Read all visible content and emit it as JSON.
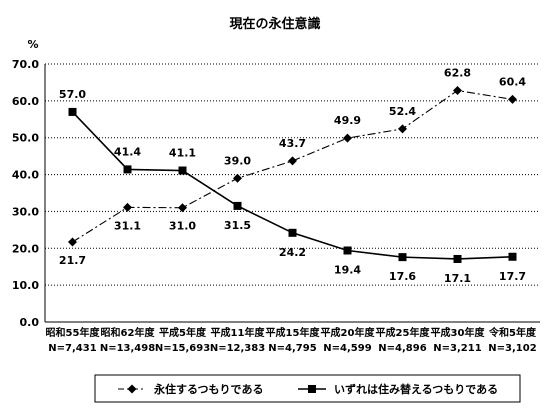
{
  "chart_data": {
    "type": "line",
    "title": "現在の永住意識",
    "ylabel": "%",
    "xlabel": "",
    "ylim": [
      0,
      70
    ],
    "y_ticks": [
      "0.0",
      "10.0",
      "20.0",
      "30.0",
      "40.0",
      "50.0",
      "60.0",
      "70.0"
    ],
    "grid": true,
    "legend_position": "bottom",
    "categories": [
      "昭和55年度",
      "昭和62年度",
      "平成5年度",
      "平成11年度",
      "平成15年度",
      "平成20年度",
      "平成25年度",
      "平成30年度",
      "令和5年度"
    ],
    "sample_sizes": [
      "N=7,431",
      "N=13,498",
      "N=15,693",
      "N=12,383",
      "N=4,795",
      "N=4,599",
      "N=4,896",
      "N=3,211",
      "N=3,102"
    ],
    "series": [
      {
        "name": "永住するつもりである",
        "values": [
          21.7,
          31.1,
          31.0,
          39.0,
          43.7,
          49.9,
          52.4,
          62.8,
          60.4
        ],
        "labels": [
          "21.7",
          "31.1",
          "31.0",
          "39.0",
          "43.7",
          "49.9",
          "52.4",
          "62.8",
          "60.4"
        ],
        "line_style": "dash-dot",
        "marker": "diamond",
        "color": "#000000"
      },
      {
        "name": "いずれは住み替えるつもりである",
        "values": [
          57.0,
          41.4,
          41.1,
          31.5,
          24.2,
          19.4,
          17.6,
          17.1,
          17.7
        ],
        "labels": [
          "57.0",
          "41.4",
          "41.1",
          "31.5",
          "24.2",
          "19.4",
          "17.6",
          "17.1",
          "17.7"
        ],
        "line_style": "solid",
        "marker": "square",
        "color": "#000000"
      }
    ]
  }
}
